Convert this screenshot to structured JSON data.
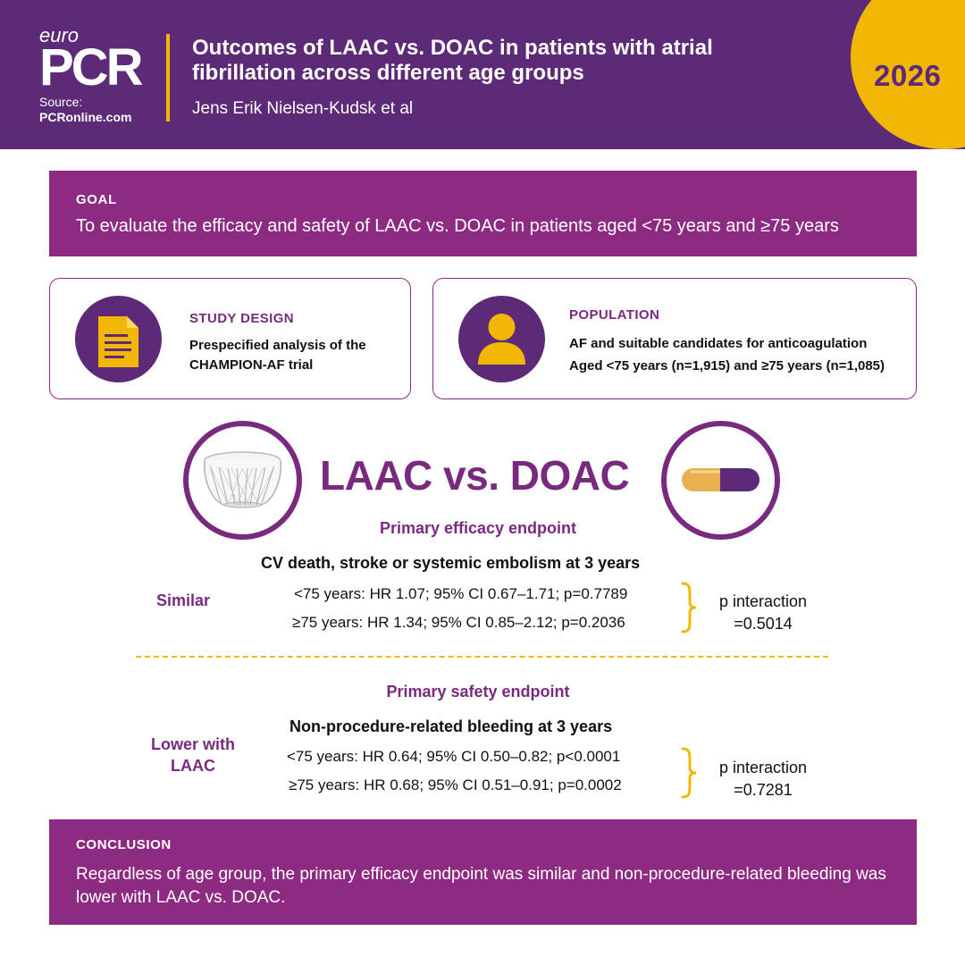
{
  "header": {
    "logo": {
      "euro": "euro",
      "pcr": "PCR",
      "source_label": "Source:",
      "source_url": "PCRonline.com"
    },
    "title": "Outcomes of LAAC vs. DOAC in patients with atrial fibrillation across different age groups",
    "authors": "Jens Erik Nielsen-Kudsk et al",
    "year": "2026"
  },
  "goal": {
    "label": "GOAL",
    "text": "To evaluate the efficacy and safety of LAAC vs. DOAC in patients aged <75 years and ≥75 years"
  },
  "study_design": {
    "label": "STUDY DESIGN",
    "line1": "Prespecified analysis of the",
    "line2": "CHAMPION-AF trial",
    "icon": "document-icon"
  },
  "population": {
    "label": "POPULATION",
    "line1": "AF and suitable candidates for anticoagulation",
    "line2": "Aged <75 years (n=1,915) and ≥75 years (n=1,085)",
    "icon": "person-icon"
  },
  "comparison": {
    "title": "LAAC vs. DOAC",
    "left_icon": "laac-device-icon",
    "right_icon": "pill-capsule-icon"
  },
  "efficacy": {
    "label": "Primary efficacy endpoint",
    "heading": "CV death, stroke or systemic embolism at 3 years",
    "verdict": "Similar",
    "rows": [
      "<75 years: HR 1.07; 95% CI 0.67–1.71; p=0.7789",
      "≥75 years: HR 1.34; 95% CI 0.85–2.12; p=0.2036"
    ],
    "p_interaction_label": "p interaction",
    "p_interaction_value": "=0.5014"
  },
  "safety": {
    "label": "Primary safety endpoint",
    "heading": "Non-procedure-related bleeding at 3 years",
    "verdict_line1": "Lower with",
    "verdict_line2": "LAAC",
    "rows": [
      "<75 years: HR 0.64; 95% CI 0.50–0.82; p<0.0001",
      "≥75 years: HR 0.68; 95% CI 0.51–0.91; p=0.0002"
    ],
    "p_interaction_label": "p interaction",
    "p_interaction_value": "=0.7281"
  },
  "conclusion": {
    "label": "CONCLUSION",
    "text": "Regardless of age group, the primary efficacy endpoint was similar and non-procedure-related bleeding was lower with LAAC vs. DOAC."
  },
  "colors": {
    "purple_dark": "#5d2a78",
    "purple": "#8d2b82",
    "accent_text": "#7a2a7e",
    "gold": "#f2b705"
  }
}
